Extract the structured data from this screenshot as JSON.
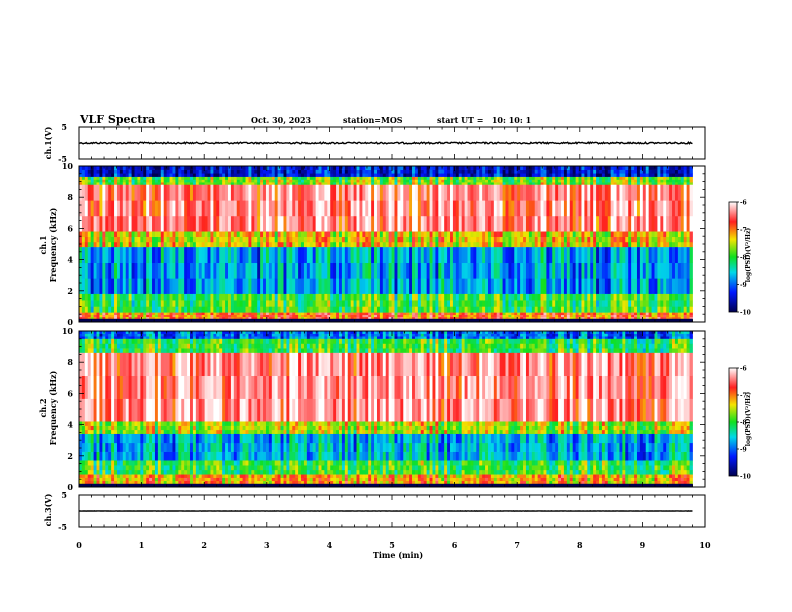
{
  "header": {
    "title": "VLF Spectra",
    "date": "Oct. 30, 2023",
    "station": "station=MOS",
    "start": "start UT =   10: 10: 1"
  },
  "colorbar_label": "log(PSD)(V²/Hz)",
  "colors": {
    "background": "#ffffff",
    "axis": "#000000",
    "red": "#ff2020",
    "yellow": "#f5e400",
    "green": "#10e020",
    "cyan": "#00d8e8",
    "blue": "#0018ff",
    "navy": "#000050"
  },
  "chart_data": [
    {
      "type": "line",
      "ylabel": "ch.1(V)",
      "ylim": [
        -5,
        5
      ],
      "ytick_labels": [
        "5",
        "-5"
      ],
      "xlim": [
        0,
        10
      ],
      "approx_level": 0
    },
    {
      "type": "heatmap",
      "ylabel_top": "ch.1",
      "ylabel": "Frequency (kHz)",
      "ylim": [
        0,
        10
      ],
      "xlim": [
        0,
        10
      ],
      "ytick_labels": [
        "0",
        "2",
        "4",
        "6",
        "8",
        "10"
      ],
      "data_end_min": 9.8,
      "colorbar": {
        "ticks": [
          "-6",
          "-7",
          "-8",
          "-9",
          "-10"
        ],
        "range": [
          -10,
          -6
        ]
      },
      "bands_khz": [
        {
          "from": 9.3,
          "to": 10,
          "level": -9.5
        },
        {
          "from": 8.8,
          "to": 9.3,
          "level": -7.8
        },
        {
          "from": 5.8,
          "to": 8.8,
          "level": -6.5
        },
        {
          "from": 4.8,
          "to": 5.8,
          "level": -7.4
        },
        {
          "from": 1.8,
          "to": 4.8,
          "level": -8.8
        },
        {
          "from": 0.6,
          "to": 1.8,
          "level": -8.0
        },
        {
          "from": 0.2,
          "to": 0.6,
          "level": -7.0
        },
        {
          "from": 0,
          "to": 0.2,
          "level": -10
        }
      ]
    },
    {
      "type": "heatmap",
      "ylabel_top": "ch.2",
      "ylabel": "Frequency (kHz)",
      "ylim": [
        0,
        10
      ],
      "xlim": [
        0,
        10
      ],
      "ytick_labels": [
        "0",
        "2",
        "4",
        "6",
        "8",
        "10"
      ],
      "data_end_min": 9.8,
      "colorbar": {
        "ticks": [
          "-6",
          "-7",
          "-8",
          "-9",
          "-10"
        ],
        "range": [
          -10,
          -6
        ]
      },
      "bands_khz": [
        {
          "from": 9.5,
          "to": 10,
          "level": -9.0
        },
        {
          "from": 8.6,
          "to": 9.5,
          "level": -8.0
        },
        {
          "from": 4.2,
          "to": 8.6,
          "level": -6.4
        },
        {
          "from": 3.4,
          "to": 4.2,
          "level": -7.6
        },
        {
          "from": 1.7,
          "to": 3.4,
          "level": -8.7
        },
        {
          "from": 0.8,
          "to": 1.7,
          "level": -8.0
        },
        {
          "from": 0.2,
          "to": 0.8,
          "level": -7.2
        },
        {
          "from": 0,
          "to": 0.2,
          "level": -10
        }
      ]
    },
    {
      "type": "line",
      "ylabel": "ch.3(V)",
      "ylim": [
        -5,
        5
      ],
      "ytick_labels": [
        "5",
        "-5"
      ],
      "xlim": [
        0,
        10
      ],
      "approx_level": 0,
      "xlabel": "Time (min)",
      "xtick_labels": [
        "0",
        "1",
        "2",
        "3",
        "4",
        "5",
        "6",
        "7",
        "8",
        "9",
        "10"
      ]
    }
  ]
}
